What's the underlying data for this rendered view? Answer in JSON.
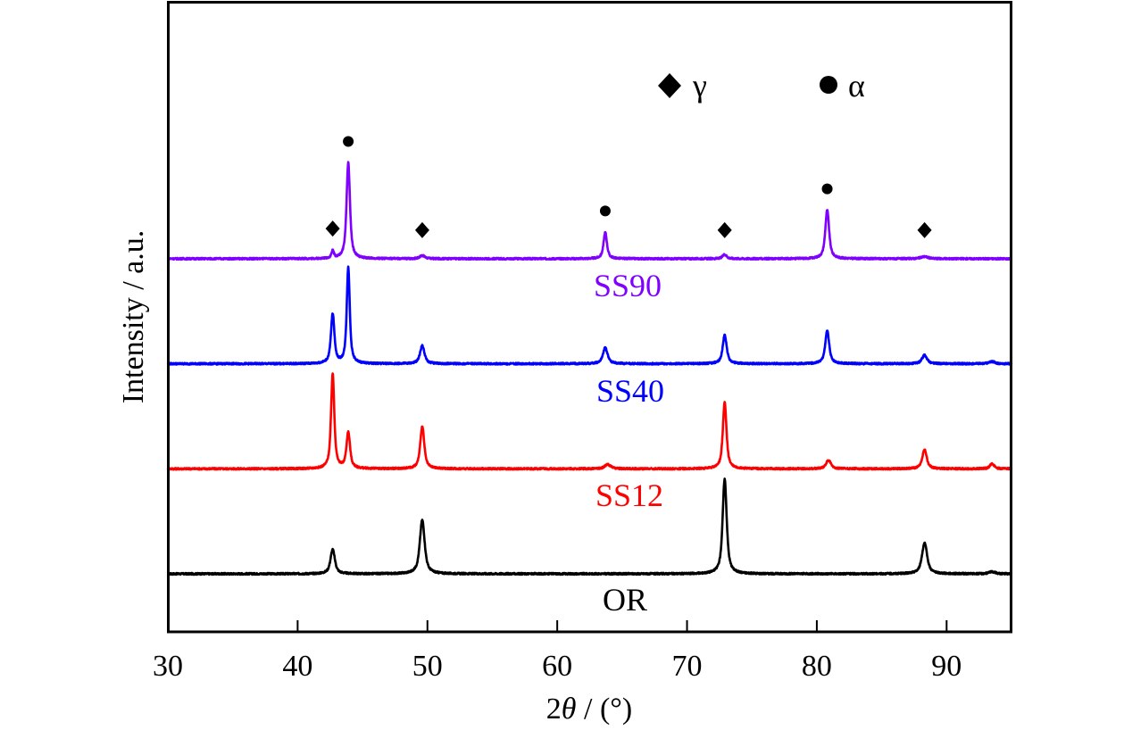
{
  "chart_data": {
    "type": "line",
    "title": "",
    "xlabel": "2θ / (°)",
    "xlabel_parts": {
      "prefix": "2",
      "symbol": "θ",
      "suffix": " / (°)"
    },
    "ylabel": "Intensity / a.u.",
    "xlim": [
      30,
      95
    ],
    "xticks": [
      30,
      40,
      50,
      60,
      70,
      80,
      90
    ],
    "xtick_labels": [
      "30",
      "40",
      "50",
      "60",
      "70",
      "80",
      "90"
    ],
    "grid": false,
    "stacked_offset_units": 100,
    "legend": {
      "placement": "top-right",
      "entries": [
        {
          "marker": "diamond",
          "label": "γ"
        },
        {
          "marker": "circle",
          "label": "α"
        }
      ]
    },
    "series": [
      {
        "name": "OR",
        "color": "#000000",
        "offset": 0,
        "peaks": [
          {
            "x": 42.7,
            "y": 23,
            "w": 0.22
          },
          {
            "x": 49.6,
            "y": 51,
            "w": 0.24
          },
          {
            "x": 72.9,
            "y": 90,
            "w": 0.2
          },
          {
            "x": 88.3,
            "y": 29,
            "w": 0.26
          },
          {
            "x": 93.5,
            "y": 2,
            "w": 0.3
          }
        ]
      },
      {
        "name": "SS12",
        "color": "#ff0000",
        "offset": 1,
        "peaks": [
          {
            "x": 42.7,
            "y": 90,
            "w": 0.16
          },
          {
            "x": 43.9,
            "y": 34,
            "w": 0.18
          },
          {
            "x": 49.6,
            "y": 40,
            "w": 0.2
          },
          {
            "x": 63.9,
            "y": 4,
            "w": 0.3
          },
          {
            "x": 72.9,
            "y": 63,
            "w": 0.18
          },
          {
            "x": 80.9,
            "y": 8,
            "w": 0.25
          },
          {
            "x": 88.3,
            "y": 18,
            "w": 0.22
          },
          {
            "x": 93.5,
            "y": 5,
            "w": 0.2
          }
        ]
      },
      {
        "name": "SS40",
        "color": "#0000ff",
        "offset": 2,
        "peaks": [
          {
            "x": 42.7,
            "y": 47,
            "w": 0.17
          },
          {
            "x": 43.9,
            "y": 91,
            "w": 0.15
          },
          {
            "x": 49.6,
            "y": 17,
            "w": 0.22
          },
          {
            "x": 63.7,
            "y": 15,
            "w": 0.24
          },
          {
            "x": 72.9,
            "y": 27,
            "w": 0.2
          },
          {
            "x": 80.8,
            "y": 31,
            "w": 0.2
          },
          {
            "x": 88.3,
            "y": 8,
            "w": 0.25
          },
          {
            "x": 93.5,
            "y": 2,
            "w": 0.3
          }
        ]
      },
      {
        "name": "SS90",
        "color": "#8000ff",
        "offset": 3,
        "peaks": [
          {
            "x": 42.7,
            "y": 7,
            "w": 0.12
          },
          {
            "x": 43.9,
            "y": 91,
            "w": 0.17
          },
          {
            "x": 49.6,
            "y": 3,
            "w": 0.25
          },
          {
            "x": 63.7,
            "y": 25,
            "w": 0.17
          },
          {
            "x": 72.9,
            "y": 4,
            "w": 0.2
          },
          {
            "x": 80.8,
            "y": 46,
            "w": 0.19
          },
          {
            "x": 88.3,
            "y": 2,
            "w": 0.35
          }
        ]
      }
    ],
    "phase_markers": [
      {
        "phase": "γ",
        "marker": "diamond",
        "x": 42.7,
        "series": "SS90"
      },
      {
        "phase": "α",
        "marker": "circle",
        "x": 43.9,
        "series": "SS90"
      },
      {
        "phase": "γ",
        "marker": "diamond",
        "x": 49.6,
        "series": "SS90"
      },
      {
        "phase": "α",
        "marker": "circle",
        "x": 63.7,
        "series": "SS90"
      },
      {
        "phase": "γ",
        "marker": "diamond",
        "x": 72.9,
        "series": "SS90"
      },
      {
        "phase": "α",
        "marker": "circle",
        "x": 80.8,
        "series": "SS90"
      },
      {
        "phase": "γ",
        "marker": "diamond",
        "x": 88.3,
        "series": "SS90"
      }
    ]
  }
}
